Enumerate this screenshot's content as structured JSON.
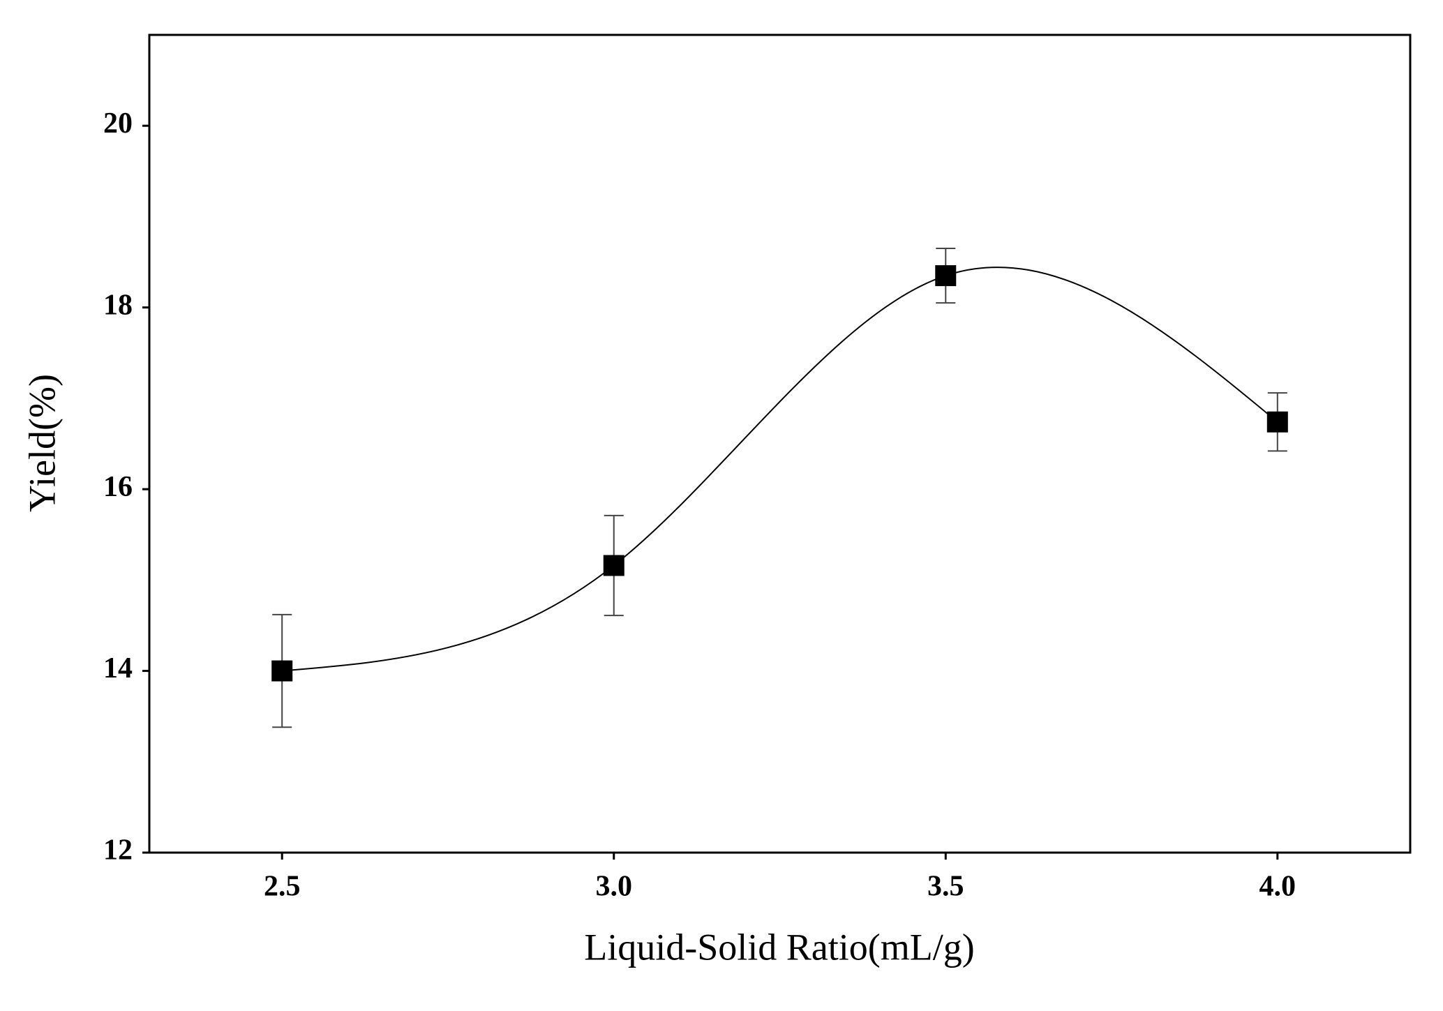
{
  "chart_data": {
    "type": "scatter",
    "x_label": "Liquid-Solid Ratio(mL/g)",
    "y_label": "Yield(%)",
    "xlim": [
      2.3,
      4.2
    ],
    "ylim": [
      12,
      21
    ],
    "xticks": [
      2.5,
      {
        "value": 3,
        "label": "3.0"
      },
      3.5,
      {
        "value": 4,
        "label": "4.0"
      }
    ],
    "yticks": [
      12,
      14,
      16,
      18,
      20
    ],
    "smooth_line": true,
    "series": [
      {
        "color": "#000000",
        "x": [
          2.5,
          3,
          3.5,
          4
        ],
        "values": [
          14.0,
          15.16,
          18.35,
          16.74
        ],
        "errors": [
          0.62,
          0.55,
          0.3,
          0.32
        ]
      }
    ]
  }
}
